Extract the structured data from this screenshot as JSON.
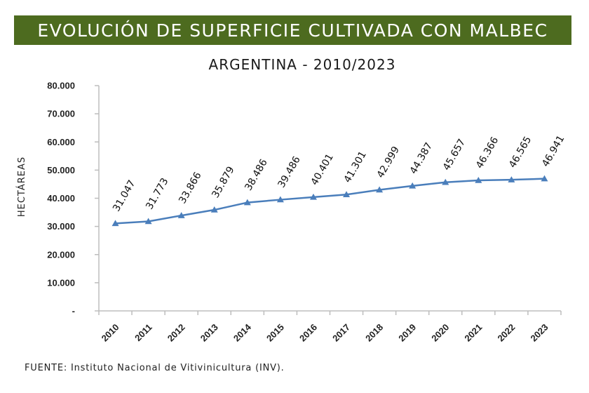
{
  "header": {
    "title": "EVOLUCIÓN DE SUPERFICIE CULTIVADA CON MALBEC",
    "subtitle": "ARGENTINA - 2010/2023"
  },
  "footer": {
    "label": "FUENTE:",
    "text": " Instituto Nacional de Vitivinicultura (INV)."
  },
  "colors": {
    "banner": "#4d6b1f",
    "line": "#4a7ebb"
  },
  "chart_data": {
    "type": "line",
    "title": "EVOLUCIÓN DE SUPERFICIE CULTIVADA CON MALBEC",
    "subtitle": "ARGENTINA - 2010/2023",
    "xlabel": "",
    "ylabel": "HECTÁREAS",
    "ylim": [
      0,
      80000
    ],
    "y_ticks": [
      0,
      10000,
      20000,
      30000,
      40000,
      50000,
      60000,
      70000,
      80000
    ],
    "y_tick_labels": [
      "-",
      "10.000",
      "20.000",
      "30.000",
      "40.000",
      "50.000",
      "60.000",
      "70.000",
      "80.000"
    ],
    "grid": false,
    "categories": [
      "2010",
      "2011",
      "2012",
      "2013",
      "2014",
      "2015",
      "2016",
      "2017",
      "2018",
      "2019",
      "2020",
      "2021",
      "2022",
      "2023"
    ],
    "series": [
      {
        "name": "Hectáreas",
        "marker": "triangle",
        "values": [
          31047,
          31773,
          33866,
          35879,
          38486,
          39486,
          40401,
          41301,
          42999,
          44387,
          45657,
          46366,
          46565,
          46941
        ],
        "labels": [
          "31.047",
          "31.773",
          "33.866",
          "35.879",
          "38.486",
          "39.486",
          "40.401",
          "41.301",
          "42.999",
          "44.387",
          "45.657",
          "46.366",
          "46.565",
          "46.941"
        ]
      }
    ]
  }
}
